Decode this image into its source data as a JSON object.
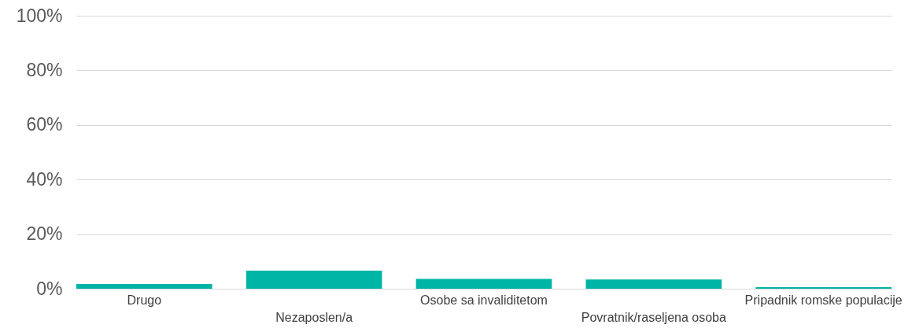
{
  "chart_data": {
    "type": "bar",
    "categories": [
      "Drugo",
      "Nezaposlen/a",
      "Osobe sa invaliditetom",
      "Povratnik/raseljena osoba",
      "Pripadnik romske populacije"
    ],
    "values": [
      1.7,
      6.6,
      3.6,
      3.4,
      0.6
    ],
    "color": "#00b5a5",
    "ylim": [
      0,
      100
    ],
    "yticks": [
      {
        "value": 0,
        "label": "0%"
      },
      {
        "value": 20,
        "label": "20%"
      },
      {
        "value": 40,
        "label": "40%"
      },
      {
        "value": 60,
        "label": "60%"
      },
      {
        "value": 80,
        "label": "80%"
      },
      {
        "value": 100,
        "label": "100%"
      }
    ],
    "grid": "y"
  }
}
